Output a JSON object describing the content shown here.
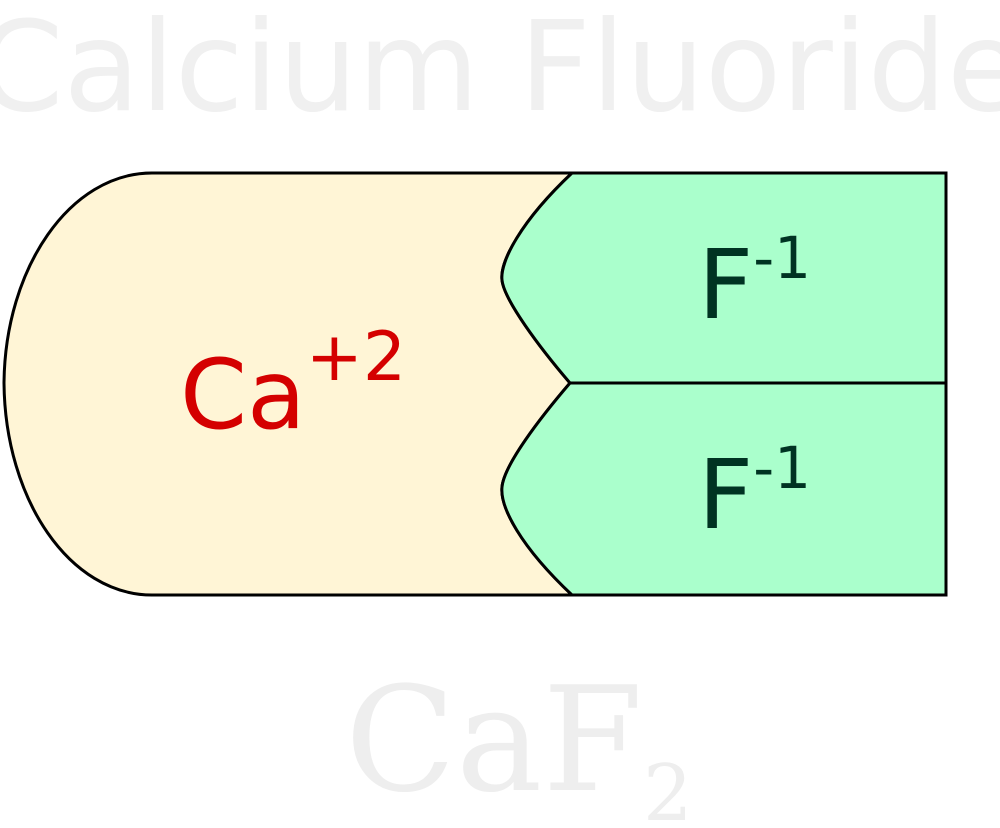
{
  "title": "Calcium Fluoride",
  "formula": {
    "main": "CaF",
    "subscript": "2"
  },
  "cation": {
    "symbol": "Ca",
    "charge": "+2",
    "fill_color": "#fff5d6",
    "text_color": "#d40000"
  },
  "anions": [
    {
      "symbol": "F",
      "charge": "-1"
    },
    {
      "symbol": "F",
      "charge": "-1"
    }
  ],
  "anion_style": {
    "fill_color": "#aaffcc",
    "text_color": "#003322"
  },
  "outline_color": "#000000"
}
